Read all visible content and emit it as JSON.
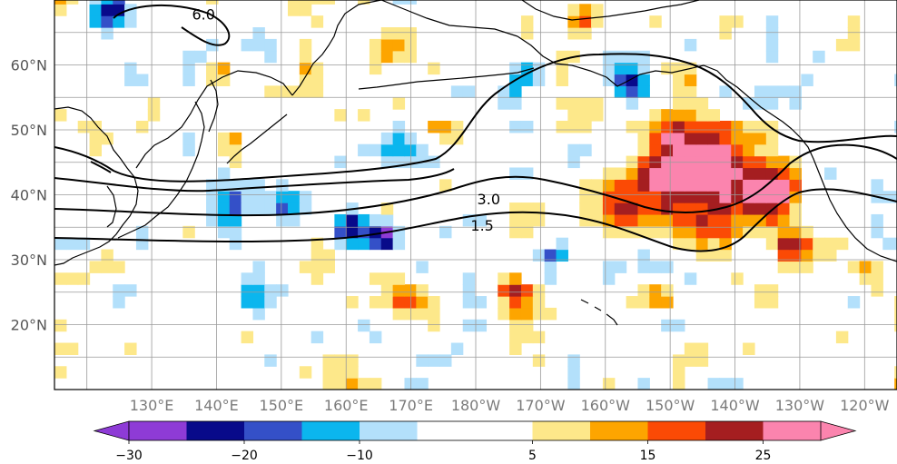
{
  "map": {
    "projection": "equirectangular",
    "lon_range": [
      120,
      250
    ],
    "lat_range": [
      10,
      70
    ],
    "lat_ticks": [
      {
        "value": 60,
        "label": "60°N"
      },
      {
        "value": 50,
        "label": "50°N"
      },
      {
        "value": 40,
        "label": "40°N"
      },
      {
        "value": 30,
        "label": "30°N"
      },
      {
        "value": 20,
        "label": "20°N"
      }
    ],
    "lon_ticks": [
      {
        "value": 130,
        "label": "130°E"
      },
      {
        "value": 140,
        "label": "140°E"
      },
      {
        "value": 150,
        "label": "150°E"
      },
      {
        "value": 160,
        "label": "160°E"
      },
      {
        "value": 170,
        "label": "170°E"
      },
      {
        "value": 180,
        "label": "180°W"
      },
      {
        "value": 190,
        "label": "170°W"
      },
      {
        "value": 200,
        "label": "160°W"
      },
      {
        "value": 210,
        "label": "150°W"
      },
      {
        "value": 220,
        "label": "140°W"
      },
      {
        "value": 230,
        "label": "130°W"
      },
      {
        "value": 240,
        "label": "120°W"
      }
    ],
    "grid": true,
    "contour_labels": [
      {
        "text": "6.0",
        "lon": 143,
        "lat": 67
      },
      {
        "text": "3.0",
        "lon": 187,
        "lat": 38.5
      },
      {
        "text": "1.5",
        "lon": 186,
        "lat": 34.5
      }
    ],
    "anomaly_blobs": [
      {
        "lon": 222,
        "lat": 42,
        "r": 6.5,
        "v": 28
      },
      {
        "lon": 213,
        "lat": 41,
        "r": 5,
        "v": 27
      },
      {
        "lon": 230,
        "lat": 39,
        "r": 4,
        "v": 24
      },
      {
        "lon": 216,
        "lat": 48,
        "r": 4,
        "v": 18
      },
      {
        "lon": 206,
        "lat": 38,
        "r": 4,
        "v": 16
      },
      {
        "lon": 220,
        "lat": 33,
        "r": 3.5,
        "v": 17
      },
      {
        "lon": 233,
        "lat": 31,
        "r": 3,
        "v": 20
      },
      {
        "lon": 190,
        "lat": 24,
        "r": 2.5,
        "v": 22
      },
      {
        "lon": 213,
        "lat": 23,
        "r": 2.5,
        "v": 15
      },
      {
        "lon": 144,
        "lat": 58,
        "r": 1.8,
        "v": 22
      },
      {
        "lon": 165,
        "lat": 34,
        "r": 3,
        "v": -25
      },
      {
        "lon": 170,
        "lat": 33,
        "r": 2,
        "v": -28
      },
      {
        "lon": 146,
        "lat": 38,
        "r": 4,
        "v": -20
      },
      {
        "lon": 155,
        "lat": 38,
        "r": 2.5,
        "v": -15
      },
      {
        "lon": 208,
        "lat": 56,
        "r": 2.5,
        "v": -24
      },
      {
        "lon": 196,
        "lat": 30,
        "r": 2.5,
        "v": -20
      },
      {
        "lon": 128,
        "lat": 68,
        "r": 3,
        "v": -22
      },
      {
        "lon": 192,
        "lat": 57,
        "r": 3,
        "v": -14
      },
      {
        "lon": 230,
        "lat": 54,
        "r": 3,
        "v": -9
      },
      {
        "lon": 172,
        "lat": 46,
        "r": 3,
        "v": -8
      },
      {
        "lon": 140,
        "lat": 46,
        "r": 3,
        "v": -8
      },
      {
        "lon": 150,
        "lat": 22,
        "r": 3,
        "v": -9
      },
      {
        "lon": 170,
        "lat": 61,
        "r": 3,
        "v": 12
      },
      {
        "lon": 158,
        "lat": 60,
        "r": 2,
        "v": 14
      },
      {
        "lon": 173,
        "lat": 23,
        "r": 2.5,
        "v": 14
      },
      {
        "lon": 180,
        "lat": 49,
        "r": 3,
        "v": 9
      },
      {
        "lon": 135,
        "lat": 52,
        "r": 2.5,
        "v": 8
      },
      {
        "lon": 160,
        "lat": 28,
        "r": 2.5,
        "v": 8
      },
      {
        "lon": 244,
        "lat": 28,
        "r": 2.5,
        "v": 12
      },
      {
        "lon": 201,
        "lat": 66,
        "r": 2.5,
        "v": 12
      },
      {
        "lon": 247,
        "lat": 40,
        "r": 2.5,
        "v": -12
      }
    ],
    "noise_seed": 7
  },
  "colorbar": {
    "labels": [
      {
        "value": -30,
        "text": "−30"
      },
      {
        "value": -20,
        "text": "−20"
      },
      {
        "value": -10,
        "text": "−10"
      },
      {
        "value": 5,
        "text": "5"
      },
      {
        "value": 15,
        "text": "15"
      },
      {
        "value": 25,
        "text": "25"
      }
    ],
    "bins": [
      {
        "lo": -30,
        "hi": -25,
        "color": "#8e3bd6"
      },
      {
        "lo": -25,
        "hi": -20,
        "color": "#080a8a"
      },
      {
        "lo": -20,
        "hi": -15,
        "color": "#3450c8"
      },
      {
        "lo": -15,
        "hi": -10,
        "color": "#0bb6ee"
      },
      {
        "lo": -10,
        "hi": -5,
        "color": "#b3e0fb"
      },
      {
        "lo": -5,
        "hi": 5,
        "color": "#ffffff"
      },
      {
        "lo": 5,
        "hi": 10,
        "color": "#fde88a"
      },
      {
        "lo": 10,
        "hi": 15,
        "color": "#fda500"
      },
      {
        "lo": 15,
        "hi": 20,
        "color": "#fb4a05"
      },
      {
        "lo": 20,
        "hi": 25,
        "color": "#a51e20"
      },
      {
        "lo": 25,
        "hi": 30,
        "color": "#fb84ae"
      }
    ],
    "under_color": "#8e3bd6",
    "over_color": "#fb84ae"
  }
}
